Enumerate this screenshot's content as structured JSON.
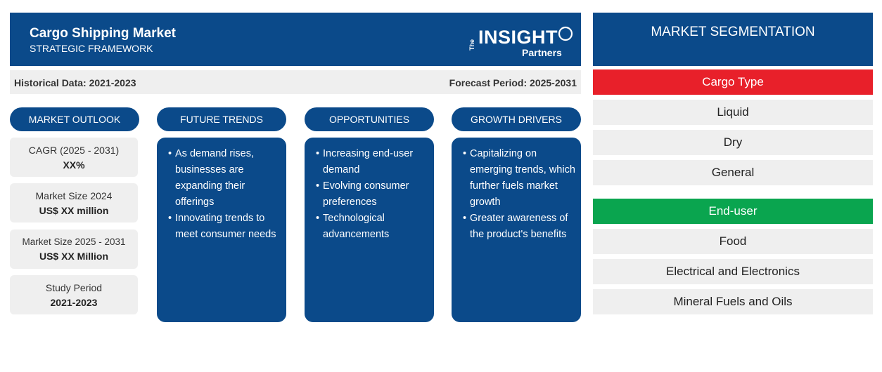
{
  "header": {
    "title": "Cargo Shipping Market",
    "subtitle": "STRATEGIC FRAMEWORK",
    "logo_the": "The",
    "logo_insight": "INSIGHT",
    "logo_partners": "Partners"
  },
  "period": {
    "historical": "Historical Data: 2021-2023",
    "forecast": "Forecast Period: 2025-2031"
  },
  "columns": {
    "market_outlook": "MARKET OUTLOOK",
    "future_trends": "FUTURE TRENDS",
    "opportunities": "OPPORTUNITIES",
    "growth_drivers": "GROWTH DRIVERS"
  },
  "outlook": [
    {
      "label": "CAGR (2025 - 2031)",
      "value": "XX%"
    },
    {
      "label": "Market Size 2024",
      "value": "US$ XX million"
    },
    {
      "label": "Market Size 2025 - 2031",
      "value": "US$ XX Million"
    },
    {
      "label": "Study Period",
      "value": "2021-2023"
    }
  ],
  "future_trends": [
    "As demand rises, businesses are expanding their offerings",
    "Innovating trends to meet consumer needs"
  ],
  "opportunities": [
    "Increasing end-user demand",
    "Evolving consumer preferences",
    "Technological advancements"
  ],
  "growth_drivers": [
    "Capitalizing on emerging trends, which further fuels market growth",
    "Greater awareness of the product's benefits"
  ],
  "segmentation": {
    "title": "MARKET SEGMENTATION",
    "cargo_type": {
      "label": "Cargo Type",
      "color": "#e8202a",
      "items": [
        "Liquid",
        "Dry",
        "General"
      ]
    },
    "end_user": {
      "label": "End-user",
      "color": "#0aa54f",
      "items": [
        "Food",
        "Electrical and Electronics",
        "Mineral Fuels and Oils"
      ]
    }
  },
  "colors": {
    "primary": "#0b4a8a",
    "panel": "#efefef"
  }
}
